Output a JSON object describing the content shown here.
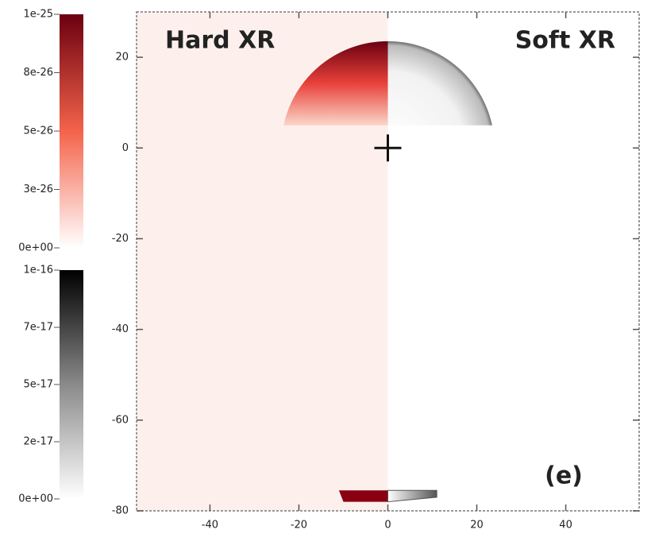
{
  "chart_data": {
    "type": "image",
    "panel_labels": [
      "Hard XR",
      "Soft XR"
    ],
    "label": "(e)",
    "xlim": [
      -56.5,
      56.5
    ],
    "ylim": [
      -80,
      30
    ],
    "xticks": [
      -40,
      -20,
      0,
      20,
      40
    ],
    "yticks": [
      20,
      0,
      -20,
      -40,
      -60,
      -80
    ],
    "colorbars": [
      {
        "colors": [
          "#ffffff",
          "#f4634a",
          "#6b0010"
        ],
        "lim": [
          0,
          1e-25
        ],
        "ticks": [
          {
            "value": 1e-25,
            "label": "1e-25"
          },
          {
            "value": 7.5e-26,
            "label": "8e-26"
          },
          {
            "value": 5e-26,
            "label": "5e-26"
          },
          {
            "value": 2.5e-26,
            "label": "3e-26"
          },
          {
            "value": 0,
            "label": "0e+00"
          }
        ]
      },
      {
        "colors": [
          "#ffffff",
          "#8a8a8a",
          "#000000"
        ],
        "lim": [
          0,
          1e-16
        ],
        "ticks": [
          {
            "value": 1e-16,
            "label": "1e-16"
          },
          {
            "value": 7.5e-17,
            "label": "7e-17"
          },
          {
            "value": 5e-17,
            "label": "5e-17"
          },
          {
            "value": 2.5e-17,
            "label": "2e-17"
          },
          {
            "value": 0,
            "label": "0e+00"
          }
        ]
      }
    ]
  }
}
